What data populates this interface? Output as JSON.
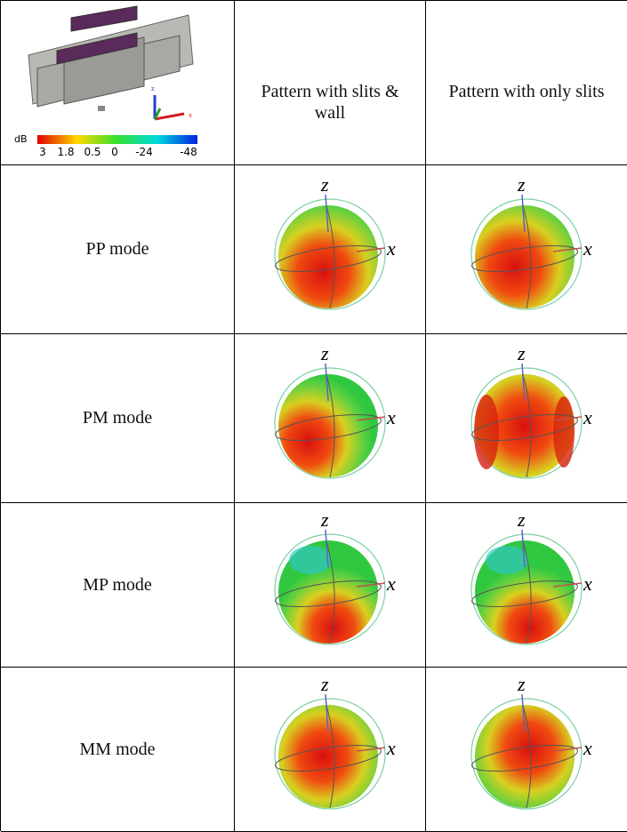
{
  "legend": {
    "unit": "dB",
    "ticks": [
      "3",
      "1.8",
      "0.5",
      "0",
      "-24",
      "-48"
    ]
  },
  "axes": {
    "z": "z",
    "x": "x"
  },
  "table": {
    "header": [
      "Pattern with slits & wall",
      "Pattern with only slits"
    ],
    "rows": [
      [
        "PP mode"
      ],
      [
        "PM mode"
      ],
      [
        "MP mode"
      ],
      [
        "MM mode"
      ]
    ]
  }
}
